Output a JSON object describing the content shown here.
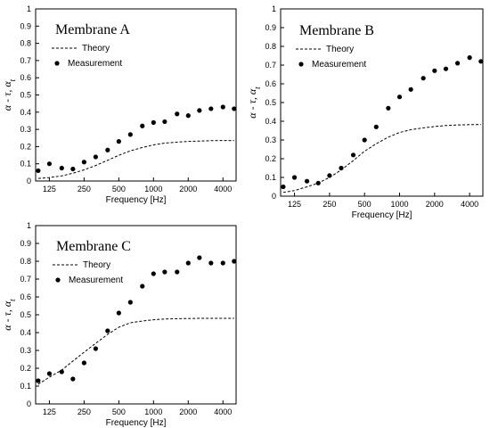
{
  "chart_data": [
    {
      "type": "scatter",
      "title": "Membrane A",
      "xlabel": "Frequency [Hz]",
      "ylabel": "α - τ, α_t",
      "ylabel_main": "α - τ, α",
      "ylabel_sub": "t",
      "xscale": "log",
      "xlim": [
        95,
        5200
      ],
      "ylim": [
        0,
        1
      ],
      "yticks": [
        "0",
        "0.1",
        "0.2",
        "0.3",
        "0.4",
        "0.5",
        "0.6",
        "0.7",
        "0.8",
        "0.9",
        "1"
      ],
      "xticks": [
        "125",
        "250",
        "500",
        "1000",
        "2000",
        "4000"
      ],
      "xtick_values": [
        125,
        250,
        500,
        1000,
        2000,
        4000
      ],
      "legend": {
        "position": "upper-left",
        "entries": [
          "Theory",
          "Measurement"
        ]
      },
      "series": [
        {
          "name": "Theory",
          "style": "dashed-line",
          "x": [
            100,
            125,
            160,
            200,
            250,
            315,
            400,
            500,
            630,
            800,
            1000,
            1250,
            1600,
            2000,
            2500,
            3150,
            4000,
            5000
          ],
          "y": [
            0.015,
            0.02,
            0.03,
            0.045,
            0.065,
            0.09,
            0.12,
            0.15,
            0.175,
            0.195,
            0.21,
            0.22,
            0.226,
            0.23,
            0.232,
            0.234,
            0.235,
            0.235
          ]
        },
        {
          "name": "Measurement",
          "style": "dots",
          "x": [
            100,
            125,
            160,
            200,
            250,
            315,
            400,
            500,
            630,
            800,
            1000,
            1250,
            1600,
            2000,
            2500,
            3150,
            4000,
            5000
          ],
          "y": [
            0.06,
            0.1,
            0.075,
            0.07,
            0.11,
            0.14,
            0.18,
            0.23,
            0.27,
            0.32,
            0.34,
            0.345,
            0.39,
            0.38,
            0.41,
            0.42,
            0.43,
            0.42
          ]
        }
      ]
    },
    {
      "type": "scatter",
      "title": "Membrane B",
      "xlabel": "Frequency [Hz]",
      "ylabel": "α - τ, α_t",
      "ylabel_main": "α - τ, α",
      "ylabel_sub": "t",
      "xscale": "log",
      "xlim": [
        95,
        5200
      ],
      "ylim": [
        0,
        1
      ],
      "yticks": [
        "0",
        "0.1",
        "0.2",
        "0.3",
        "0.4",
        "0.5",
        "0.6",
        "0.7",
        "0.8",
        "0.9",
        "1"
      ],
      "xticks": [
        "125",
        "250",
        "500",
        "1000",
        "2000",
        "4000"
      ],
      "xtick_values": [
        125,
        250,
        500,
        1000,
        2000,
        4000
      ],
      "legend": {
        "position": "upper-left",
        "entries": [
          "Theory",
          "Measurement"
        ]
      },
      "series": [
        {
          "name": "Theory",
          "style": "dashed-line",
          "x": [
            100,
            125,
            160,
            200,
            250,
            315,
            400,
            500,
            630,
            800,
            1000,
            1250,
            1600,
            2000,
            2500,
            3150,
            4000,
            5000
          ],
          "y": [
            0.02,
            0.03,
            0.05,
            0.07,
            0.1,
            0.14,
            0.19,
            0.24,
            0.28,
            0.315,
            0.34,
            0.355,
            0.365,
            0.372,
            0.377,
            0.38,
            0.382,
            0.383
          ]
        },
        {
          "name": "Measurement",
          "style": "dots",
          "x": [
            100,
            125,
            160,
            200,
            250,
            315,
            400,
            500,
            630,
            800,
            1000,
            1250,
            1600,
            2000,
            2500,
            3150,
            4000,
            5000
          ],
          "y": [
            0.05,
            0.1,
            0.08,
            0.07,
            0.11,
            0.15,
            0.22,
            0.3,
            0.37,
            0.47,
            0.53,
            0.57,
            0.63,
            0.67,
            0.68,
            0.71,
            0.74,
            0.72
          ]
        }
      ]
    },
    {
      "type": "scatter",
      "title": "Membrane C",
      "xlabel": "Frequency [Hz]",
      "ylabel": "α - τ, α_t",
      "ylabel_main": "α - τ, α",
      "ylabel_sub": "t",
      "xscale": "log",
      "xlim": [
        95,
        5200
      ],
      "ylim": [
        0,
        1
      ],
      "yticks": [
        "0",
        "0.1",
        "0.2",
        "0.3",
        "0.4",
        "0.5",
        "0.6",
        "0.7",
        "0.8",
        "0.9",
        "1"
      ],
      "xticks": [
        "125",
        "250",
        "500",
        "1000",
        "2000",
        "4000"
      ],
      "xtick_values": [
        125,
        250,
        500,
        1000,
        2000,
        4000
      ],
      "legend": {
        "position": "upper-left",
        "entries": [
          "Theory",
          "Measurement"
        ]
      },
      "series": [
        {
          "name": "Theory",
          "style": "dashed-line",
          "x": [
            100,
            125,
            160,
            200,
            250,
            315,
            400,
            500,
            630,
            800,
            1000,
            1250,
            1600,
            2000,
            2500,
            3150,
            4000,
            5000
          ],
          "y": [
            0.11,
            0.15,
            0.19,
            0.24,
            0.29,
            0.34,
            0.39,
            0.43,
            0.455,
            0.465,
            0.472,
            0.476,
            0.478,
            0.479,
            0.48,
            0.48,
            0.48,
            0.48
          ]
        },
        {
          "name": "Measurement",
          "style": "dots",
          "x": [
            100,
            125,
            160,
            200,
            250,
            315,
            400,
            500,
            630,
            800,
            1000,
            1250,
            1600,
            2000,
            2500,
            3150,
            4000,
            5000
          ],
          "y": [
            0.13,
            0.17,
            0.18,
            0.14,
            0.23,
            0.31,
            0.41,
            0.51,
            0.57,
            0.66,
            0.73,
            0.74,
            0.74,
            0.79,
            0.82,
            0.79,
            0.79,
            0.8
          ]
        }
      ]
    }
  ]
}
